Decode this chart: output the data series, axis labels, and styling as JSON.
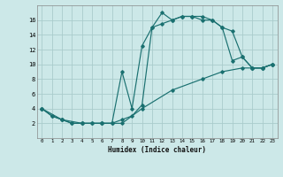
{
  "xlabel": "Humidex (Indice chaleur)",
  "bg_color": "#cce8e8",
  "grid_color": "#aacccc",
  "line_color": "#1a7070",
  "line1_x": [
    0,
    1,
    2,
    3,
    4,
    5,
    6,
    7,
    8,
    9,
    10,
    11,
    12,
    13,
    14,
    15,
    16,
    17,
    18,
    19,
    20,
    21,
    22,
    23
  ],
  "line1_y": [
    4,
    3,
    2.5,
    2,
    2,
    2,
    2,
    2,
    2.5,
    3,
    4.5,
    15,
    17,
    16,
    16.5,
    16.5,
    16,
    16,
    15,
    14.5,
    11,
    9.5,
    9.5,
    10
  ],
  "line2_x": [
    0,
    1,
    2,
    3,
    4,
    5,
    6,
    7,
    8,
    9,
    10,
    11,
    12,
    13,
    14,
    15,
    16,
    17,
    18,
    19,
    20,
    21,
    22,
    23
  ],
  "line2_y": [
    4,
    3,
    2.5,
    2,
    2,
    2,
    2,
    2,
    9,
    4,
    12.5,
    15,
    15.5,
    16,
    16.5,
    16.5,
    16.5,
    16,
    15,
    10.5,
    11,
    9.5,
    9.5,
    10
  ],
  "line3_x": [
    0,
    2,
    4,
    6,
    8,
    10,
    13,
    16,
    18,
    20,
    21,
    22,
    23
  ],
  "line3_y": [
    4,
    2.5,
    2,
    2,
    2,
    4,
    6.5,
    8,
    9,
    9.5,
    9.5,
    9.5,
    10
  ],
  "xlim": [
    -0.5,
    23.5
  ],
  "ylim": [
    0,
    18
  ],
  "yticks": [
    2,
    4,
    6,
    8,
    10,
    12,
    14,
    16
  ],
  "xticks": [
    0,
    1,
    2,
    3,
    4,
    5,
    6,
    7,
    8,
    9,
    10,
    11,
    12,
    13,
    14,
    15,
    16,
    17,
    18,
    19,
    20,
    21,
    22,
    23
  ]
}
